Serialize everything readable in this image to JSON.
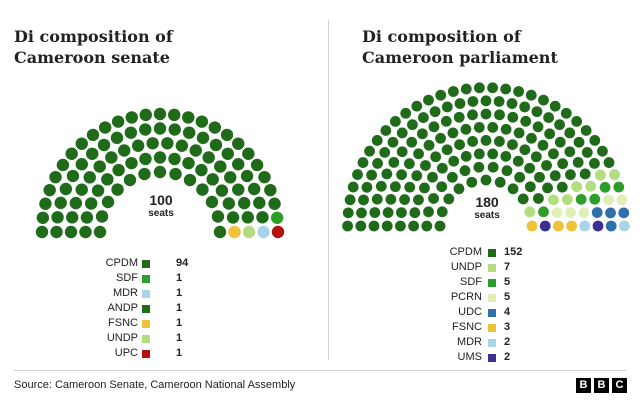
{
  "chart_data": [
    {
      "type": "parliament",
      "title": "Di composition of Cameroon senate",
      "total_seats": 100,
      "center_label": "seats",
      "series": [
        {
          "name": "CPDM",
          "value": 94,
          "color": "#1f6b1a"
        },
        {
          "name": "SDF",
          "value": 1,
          "color": "#2e9e2b"
        },
        {
          "name": "MDR",
          "value": 1,
          "color": "#a8d4e8"
        },
        {
          "name": "ANDP",
          "value": 1,
          "color": "#1f6b1a"
        },
        {
          "name": "FSNC",
          "value": 1,
          "color": "#f0c13a"
        },
        {
          "name": "UNDP",
          "value": 1,
          "color": "#b2de80"
        },
        {
          "name": "UPC",
          "value": 1,
          "color": "#b5120e"
        }
      ]
    },
    {
      "type": "parliament",
      "title": "Di composition of Cameroon parliament",
      "total_seats": 180,
      "center_label": "seats",
      "series": [
        {
          "name": "CPDM",
          "value": 152,
          "color": "#1f6b1a"
        },
        {
          "name": "UNDP",
          "value": 7,
          "color": "#b2de80"
        },
        {
          "name": "SDF",
          "value": 5,
          "color": "#2e9e2b"
        },
        {
          "name": "PCRN",
          "value": 5,
          "color": "#e0efb6"
        },
        {
          "name": "UDC",
          "value": 4,
          "color": "#2f6fad"
        },
        {
          "name": "FSNC",
          "value": 3,
          "color": "#f0c13a"
        },
        {
          "name": "MDR",
          "value": 2,
          "color": "#a8d4e8"
        },
        {
          "name": "UMS",
          "value": 2,
          "color": "#3b2f91"
        }
      ]
    }
  ],
  "source": "Source: Cameroon Senate, Cameroon National Assembly",
  "logo": [
    "B",
    "B",
    "C"
  ]
}
